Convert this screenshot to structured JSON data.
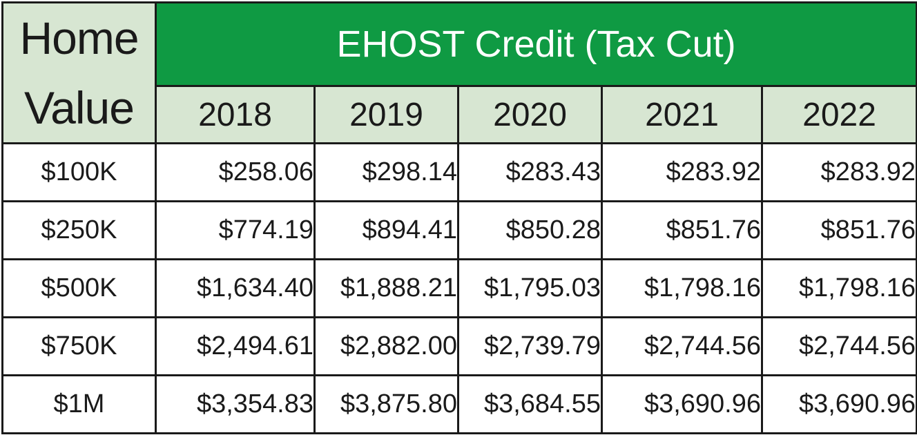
{
  "chart_data": {
    "type": "table",
    "title": "EHOST Credit (Tax Cut)",
    "row_header": [
      "Home",
      "Value"
    ],
    "columns": [
      "2018",
      "2019",
      "2020",
      "2021",
      "2022"
    ],
    "rows": [
      {
        "label": "$100K",
        "values": [
          "$258.06",
          "$298.14",
          "$283.43",
          "$283.92",
          "$283.92"
        ]
      },
      {
        "label": "$250K",
        "values": [
          "$774.19",
          "$894.41",
          "$850.28",
          "$851.76",
          "$851.76"
        ]
      },
      {
        "label": "$500K",
        "values": [
          "$1,634.40",
          "$1,888.21",
          "$1,795.03",
          "$1,798.16",
          "$1,798.16"
        ]
      },
      {
        "label": "$750K",
        "values": [
          "$2,494.61",
          "$2,882.00",
          "$2,739.79",
          "$2,744.56",
          "$2,744.56"
        ]
      },
      {
        "label": "$1M",
        "values": [
          "$3,354.83",
          "$3,875.80",
          "$3,684.55",
          "$3,690.96",
          "$3,690.96"
        ]
      }
    ],
    "colors": {
      "title_bg": "#0f9a43",
      "header_bg": "#d7e6d2",
      "body_bg": "#ffffff",
      "border": "#1a1a1a"
    }
  }
}
